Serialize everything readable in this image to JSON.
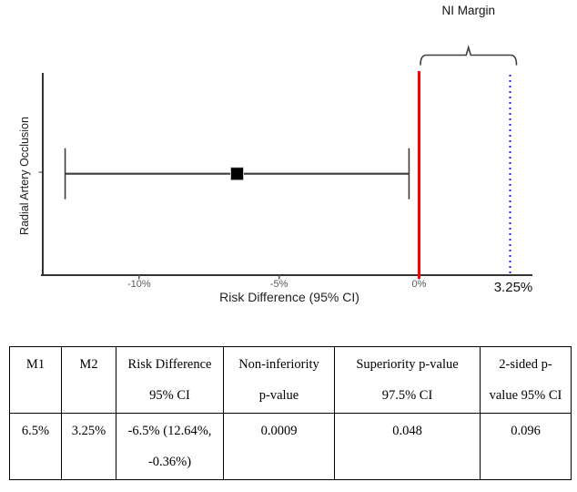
{
  "chart_data": {
    "type": "scatter",
    "subtype": "forest-plot-single-ci",
    "title": "",
    "xlabel": "Risk Difference (95% CI)",
    "ylabel": "Radial Artery Occlusion",
    "series": [
      {
        "name": "Radial Artery Occlusion",
        "point_estimate_pct": -6.5,
        "ci_low_pct": -12.64,
        "ci_high_pct": -0.36
      }
    ],
    "reference_lines": [
      {
        "name": "zero-line",
        "value_pct": 0,
        "style": "solid",
        "color": "#fe0000"
      },
      {
        "name": "ni-margin-line",
        "value_pct": 3.25,
        "style": "dotted",
        "color": "#2121ee"
      }
    ],
    "x_ticks": [
      {
        "value": -10,
        "label": "-10%"
      },
      {
        "value": -5,
        "label": "-5%"
      },
      {
        "value": 0,
        "label": "0%"
      }
    ],
    "annotations": {
      "ni_margin_label": "NI Margin",
      "ni_margin_value_label": "3.25%"
    },
    "xlim_pct": [
      -13.4,
      4.0
    ],
    "grid": false,
    "legend": false
  },
  "colors": {
    "zero_line": "#fe0000",
    "ni_margin_line": "#2121ee",
    "ci_line": "#3d3d3d",
    "axis": "#333333",
    "tick_label": "#5a5a5a",
    "axis_title": "#222222",
    "annotation_text": "#111111",
    "brace": "#3f3f3f",
    "marker": "#000000",
    "table_border": "#000000"
  },
  "table": {
    "headers": [
      "M1",
      "M2",
      "Risk Difference\n95% CI",
      "Non-inferiority\np-value",
      "Superiority p-value\n97.5% CI",
      "2-sided p-\nvalue 95% CI"
    ],
    "row": [
      "6.5%",
      "3.25%",
      "-6.5% (12.64%,\n-0.36%)",
      "0.0009",
      "0.048",
      "0.096"
    ]
  }
}
